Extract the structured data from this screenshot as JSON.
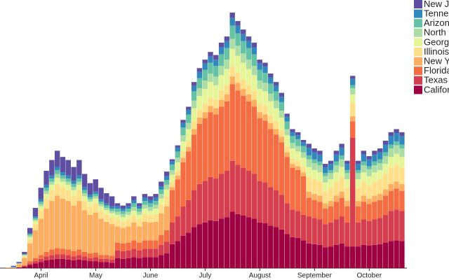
{
  "chart_data": {
    "type": "stacked-bar",
    "categories": [
      null,
      null,
      null,
      null,
      null,
      null,
      null,
      "April",
      null,
      null,
      null,
      null,
      null,
      null,
      null,
      null,
      null,
      "May",
      null,
      null,
      null,
      null,
      null,
      null,
      null,
      null,
      null,
      "June",
      null,
      null,
      null,
      null,
      null,
      null,
      null,
      null,
      null,
      "July",
      null,
      null,
      null,
      null,
      null,
      null,
      null,
      null,
      null,
      "August",
      null,
      null,
      null,
      null,
      null,
      null,
      null,
      null,
      null,
      "September",
      null,
      null,
      null,
      null,
      null,
      null,
      null,
      null,
      null,
      "October",
      null,
      null,
      null,
      null,
      null,
      null
    ],
    "ylim": [
      0,
      340
    ],
    "legend": "top-right",
    "series": [
      {
        "name": "Californ",
        "color": "#9e0142",
        "values": [
          0,
          0,
          0,
          1,
          2,
          4,
          6,
          8,
          10,
          11,
          12,
          12,
          11,
          10,
          11,
          10,
          9,
          9,
          8,
          8,
          7,
          13,
          12,
          13,
          14,
          13,
          14,
          14,
          14,
          17,
          19,
          31,
          35,
          42,
          46,
          53,
          57,
          59,
          62,
          61,
          64,
          66,
          73,
          70,
          68,
          66,
          64,
          59,
          58,
          55,
          53,
          50,
          44,
          40,
          39,
          36,
          32,
          31,
          30,
          27,
          28,
          30,
          32,
          28,
          28,
          28,
          30,
          29,
          30,
          31,
          33,
          35,
          36,
          35
        ]
      },
      {
        "name": "Texas",
        "color": "#d53e4f",
        "values": [
          0,
          0,
          0,
          0,
          1,
          2,
          3,
          4,
          5,
          6,
          6,
          6,
          6,
          5,
          6,
          5,
          4,
          5,
          4,
          4,
          4,
          10,
          10,
          10,
          11,
          10,
          11,
          11,
          11,
          13,
          15,
          28,
          32,
          38,
          42,
          48,
          52,
          54,
          56,
          55,
          58,
          60,
          66,
          64,
          62,
          60,
          58,
          54,
          53,
          50,
          48,
          45,
          40,
          36,
          35,
          33,
          35,
          34,
          33,
          30,
          31,
          33,
          35,
          31,
          141,
          31,
          33,
          32,
          33,
          34,
          36,
          39,
          40,
          39
        ]
      },
      {
        "name": "Florida",
        "color": "#f46d43",
        "values": [
          0,
          0,
          0,
          0,
          1,
          3,
          4,
          5,
          6,
          7,
          8,
          7,
          7,
          7,
          7,
          6,
          6,
          6,
          5,
          5,
          5,
          10,
          10,
          10,
          11,
          10,
          11,
          11,
          11,
          13,
          15,
          42,
          48,
          57,
          63,
          72,
          78,
          81,
          84,
          83,
          87,
          90,
          99,
          96,
          93,
          90,
          87,
          81,
          80,
          75,
          72,
          68,
          60,
          54,
          53,
          50,
          24,
          23,
          23,
          20,
          21,
          23,
          24,
          21,
          21,
          21,
          23,
          22,
          23,
          23,
          25,
          26,
          27,
          26
        ]
      },
      {
        "name": "New Yo",
        "color": "#fdae61",
        "values": [
          0,
          1,
          1,
          4,
          9,
          23,
          36,
          47,
          56,
          63,
          68,
          65,
          63,
          59,
          63,
          54,
          50,
          52,
          47,
          43,
          41,
          21,
          20,
          21,
          23,
          21,
          24,
          23,
          24,
          28,
          31,
          4,
          5,
          6,
          6,
          7,
          8,
          8,
          8,
          8,
          9,
          9,
          10,
          10,
          9,
          9,
          9,
          8,
          8,
          8,
          7,
          7,
          6,
          5,
          5,
          5,
          8,
          8,
          8,
          7,
          7,
          8,
          8,
          7,
          7,
          7,
          8,
          7,
          8,
          8,
          8,
          9,
          9,
          9
        ]
      },
      {
        "name": "Illinois",
        "color": "#fee08b",
        "values": [
          0,
          0,
          0,
          1,
          2,
          5,
          8,
          11,
          13,
          14,
          15,
          15,
          14,
          13,
          14,
          12,
          11,
          12,
          11,
          10,
          9,
          9,
          8,
          9,
          9,
          9,
          10,
          9,
          10,
          11,
          13,
          6,
          6,
          8,
          8,
          10,
          10,
          11,
          11,
          11,
          12,
          12,
          13,
          13,
          12,
          12,
          12,
          11,
          11,
          10,
          10,
          9,
          8,
          7,
          7,
          7,
          19,
          19,
          18,
          16,
          17,
          18,
          19,
          17,
          17,
          17,
          18,
          17,
          18,
          19,
          20,
          21,
          22,
          21
        ]
      },
      {
        "name": "Georgi",
        "color": "#e6f598",
        "values": [
          0,
          0,
          0,
          0,
          1,
          3,
          4,
          5,
          6,
          7,
          8,
          7,
          7,
          7,
          7,
          6,
          6,
          6,
          5,
          5,
          5,
          6,
          6,
          6,
          6,
          6,
          7,
          6,
          7,
          8,
          9,
          10,
          11,
          13,
          15,
          17,
          18,
          19,
          20,
          19,
          20,
          21,
          23,
          22,
          22,
          21,
          20,
          19,
          19,
          18,
          17,
          16,
          14,
          13,
          12,
          12,
          13,
          12,
          12,
          11,
          11,
          12,
          13,
          11,
          11,
          11,
          12,
          12,
          12,
          12,
          13,
          14,
          14,
          14
        ]
      },
      {
        "name": "North C",
        "color": "#abdda4",
        "values": [
          0,
          0,
          0,
          0,
          1,
          2,
          2,
          3,
          4,
          4,
          5,
          4,
          4,
          4,
          4,
          4,
          3,
          3,
          3,
          3,
          3,
          4,
          4,
          4,
          5,
          4,
          5,
          5,
          5,
          6,
          6,
          6,
          6,
          8,
          8,
          10,
          10,
          11,
          11,
          11,
          12,
          12,
          13,
          13,
          12,
          12,
          12,
          11,
          11,
          10,
          10,
          9,
          8,
          7,
          7,
          7,
          10,
          9,
          9,
          8,
          8,
          9,
          10,
          8,
          8,
          8,
          9,
          9,
          9,
          9,
          10,
          11,
          11,
          11
        ]
      },
      {
        "name": "Arizona",
        "color": "#66c2a5",
        "values": [
          0,
          0,
          0,
          0,
          1,
          2,
          2,
          3,
          4,
          4,
          5,
          4,
          4,
          4,
          4,
          4,
          3,
          3,
          3,
          3,
          3,
          4,
          4,
          4,
          5,
          4,
          5,
          5,
          5,
          6,
          6,
          7,
          8,
          10,
          11,
          12,
          13,
          14,
          14,
          14,
          15,
          15,
          17,
          16,
          16,
          15,
          15,
          14,
          13,
          13,
          12,
          11,
          10,
          9,
          9,
          8,
          5,
          5,
          5,
          4,
          4,
          5,
          5,
          4,
          4,
          4,
          5,
          4,
          5,
          5,
          5,
          5,
          5,
          5
        ]
      },
      {
        "name": "Tennes",
        "color": "#3288bd",
        "values": [
          0,
          0,
          1,
          1,
          0,
          1,
          2,
          3,
          4,
          4,
          4,
          4,
          4,
          4,
          4,
          4,
          3,
          3,
          3,
          3,
          3,
          3,
          3,
          3,
          4,
          3,
          4,
          4,
          4,
          4,
          5,
          4,
          5,
          6,
          6,
          7,
          8,
          8,
          8,
          8,
          9,
          9,
          10,
          10,
          9,
          9,
          9,
          8,
          8,
          8,
          7,
          7,
          6,
          5,
          5,
          5,
          10,
          9,
          9,
          8,
          8,
          9,
          10,
          8,
          8,
          8,
          9,
          9,
          9,
          9,
          10,
          11,
          11,
          11
        ]
      },
      {
        "name": "New Je",
        "color": "#5e4fa2",
        "values": [
          0,
          0,
          1,
          1,
          3,
          7,
          11,
          15,
          18,
          20,
          21,
          20,
          20,
          18,
          20,
          17,
          15,
          16,
          15,
          13,
          13,
          4,
          4,
          4,
          5,
          4,
          5,
          5,
          5,
          6,
          6,
          3,
          3,
          4,
          4,
          5,
          5,
          5,
          6,
          6,
          6,
          6,
          7,
          6,
          6,
          6,
          6,
          5,
          5,
          5,
          5,
          5,
          4,
          4,
          4,
          3,
          5,
          5,
          5,
          4,
          4,
          5,
          5,
          4,
          4,
          4,
          5,
          4,
          5,
          5,
          5,
          5,
          5,
          5
        ]
      }
    ]
  }
}
